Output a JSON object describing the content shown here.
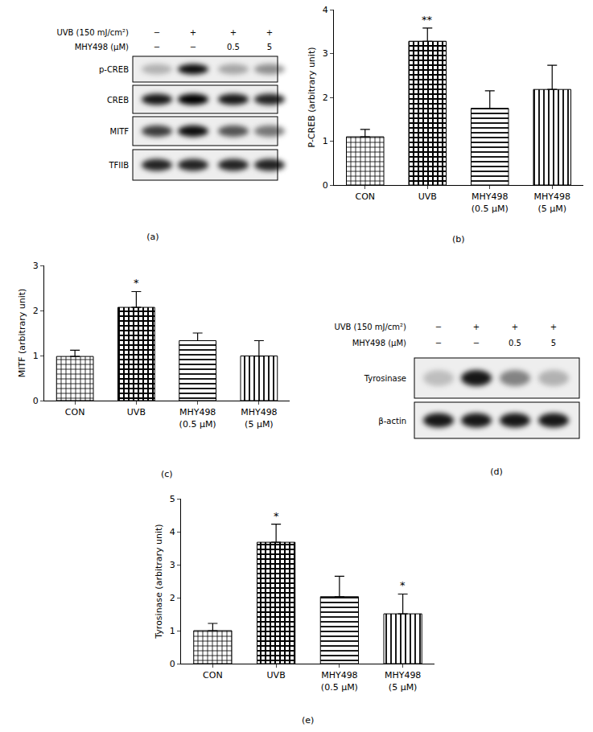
{
  "chart_data": [
    {
      "type": "bar",
      "title": "(b)",
      "ylabel": "P-CREB (arbitrary unit)",
      "categories": [
        "CON",
        "UVB",
        "MHY498 (0.5 μM)",
        "MHY498 (5 μM)"
      ],
      "values": [
        1.1,
        3.28,
        1.75,
        2.18
      ],
      "error": [
        0.17,
        0.3,
        0.4,
        0.55
      ],
      "color": "#000000",
      "ylim": [
        0,
        4
      ],
      "yticks": [
        0,
        1,
        2,
        3,
        4
      ],
      "annotations": [
        {
          "category": "UVB",
          "text": "**"
        }
      ]
    },
    {
      "type": "bar",
      "title": "(c)",
      "ylabel": "MITF (arbitrary unit)",
      "categories": [
        "CON",
        "UVB",
        "MHY498 (0.5 μM)",
        "MHY498 (5 μM)"
      ],
      "values": [
        0.98,
        2.07,
        1.33,
        0.99
      ],
      "error": [
        0.14,
        0.35,
        0.17,
        0.34
      ],
      "color": "#000000",
      "ylim": [
        0,
        3
      ],
      "yticks": [
        0,
        1,
        2,
        3
      ],
      "annotations": [
        {
          "category": "UVB",
          "text": "*"
        }
      ]
    },
    {
      "type": "bar",
      "title": "(e)",
      "ylabel": "Tyrosinase (arbitrary unit)",
      "categories": [
        "CON",
        "UVB",
        "MHY498 (0.5 μM)",
        "MHY498 (5 μM)"
      ],
      "values": [
        1.0,
        3.68,
        2.03,
        1.51
      ],
      "error": [
        0.22,
        0.55,
        0.62,
        0.6
      ],
      "color": "#000000",
      "ylim": [
        0,
        5
      ],
      "yticks": [
        0,
        1,
        2,
        3,
        4,
        5
      ],
      "annotations": [
        {
          "category": "UVB",
          "text": "*"
        },
        {
          "category": "MHY498 (5 μM)",
          "text": "*"
        }
      ]
    }
  ],
  "blots": [
    {
      "title": "(a)",
      "conditions": [
        {
          "label": "UVB (150 mJ/cm²)",
          "lanes": [
            "−",
            "+",
            "+",
            "+"
          ]
        },
        {
          "label": "MHY498 (μM)",
          "lanes": [
            "−",
            "−",
            "0.5",
            "5"
          ]
        }
      ],
      "bands": [
        {
          "label": "p-CREB",
          "intensity": [
            0.25,
            0.95,
            0.3,
            0.4
          ]
        },
        {
          "label": "CREB",
          "intensity": [
            0.9,
            1.0,
            0.9,
            0.85
          ]
        },
        {
          "label": "MITF",
          "intensity": [
            0.75,
            0.95,
            0.65,
            0.5
          ]
        },
        {
          "label": "TFIIB",
          "intensity": [
            0.85,
            0.85,
            0.85,
            0.85
          ]
        }
      ]
    },
    {
      "title": "(d)",
      "conditions": [
        {
          "label": "UVB (150 mJ/cm²)",
          "lanes": [
            "−",
            "+",
            "+",
            "+"
          ]
        },
        {
          "label": "MHY498 (μM)",
          "lanes": [
            "−",
            "−",
            "0.5",
            "5"
          ]
        }
      ],
      "bands": [
        {
          "label": "Tyrosinase",
          "intensity": [
            0.2,
            0.9,
            0.45,
            0.25
          ]
        },
        {
          "label": "β-actin",
          "intensity": [
            0.9,
            0.9,
            0.9,
            0.9
          ]
        }
      ]
    }
  ]
}
